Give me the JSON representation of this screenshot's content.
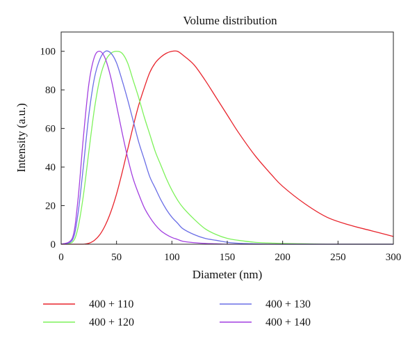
{
  "chart_data": {
    "type": "line",
    "title": "Volume distribution",
    "xlabel": "Diameter (nm)",
    "ylabel": "Intensity (a.u.)",
    "xlim": [
      0,
      300
    ],
    "ylim": [
      0,
      110
    ],
    "xticks": [
      0,
      50,
      100,
      150,
      200,
      250,
      300
    ],
    "yticks": [
      0,
      20,
      40,
      60,
      80,
      100
    ],
    "grid": false,
    "legend_position": "bottom",
    "x": [
      0,
      10,
      15,
      20,
      25,
      30,
      35,
      40,
      45,
      50,
      55,
      60,
      65,
      70,
      75,
      80,
      85,
      90,
      95,
      100,
      105,
      110,
      120,
      130,
      140,
      150,
      160,
      175,
      190,
      200,
      220,
      240,
      260,
      280,
      300
    ],
    "series": [
      {
        "name": "400 + 110",
        "color": "#e8232b",
        "values": [
          0,
          0,
          0,
          0,
          0.5,
          2,
          5,
          10,
          17,
          26,
          37,
          49,
          61,
          72,
          81,
          89,
          94,
          97,
          99,
          100,
          100,
          98,
          93,
          85,
          76,
          67,
          58,
          46,
          36,
          30,
          21,
          14,
          10,
          7,
          4
        ]
      },
      {
        "name": "400 + 120",
        "color": "#7df25a",
        "values": [
          0,
          1,
          8,
          25,
          48,
          70,
          86,
          95,
          99,
          100,
          99,
          94,
          85,
          76,
          66,
          57,
          48,
          41,
          34,
          28,
          23,
          19,
          13,
          8,
          5,
          3,
          2,
          1,
          0.6,
          0.4,
          0.2,
          0,
          0,
          0,
          0
        ]
      },
      {
        "name": "400 + 130",
        "color": "#6a6ee6",
        "values": [
          0,
          2,
          15,
          40,
          67,
          86,
          96,
          100,
          99,
          94,
          85,
          75,
          64,
          53,
          44,
          35,
          29,
          23,
          18,
          14,
          11,
          8,
          5,
          3,
          2,
          1,
          0.5,
          0.2,
          0,
          0,
          0,
          0,
          0,
          0,
          0
        ]
      },
      {
        "name": "400 + 140",
        "color": "#a23fe0",
        "values": [
          0,
          3,
          22,
          55,
          83,
          97,
          100,
          96,
          86,
          72,
          58,
          45,
          34,
          26,
          19,
          14,
          10,
          7,
          5,
          3.5,
          2.5,
          1.5,
          0.8,
          0.4,
          0.2,
          0,
          0,
          0,
          0,
          0,
          0,
          0,
          0,
          0,
          0
        ]
      }
    ]
  }
}
